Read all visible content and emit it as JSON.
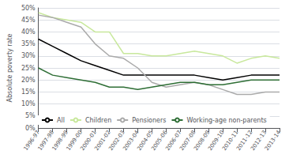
{
  "chart_data": {
    "type": "line",
    "categories": [
      "1996-97",
      "1997-98",
      "1998-99",
      "1999-00",
      "2000-01",
      "2001-02",
      "2002-03",
      "2003-04",
      "2004-05",
      "2005-06",
      "2006-07",
      "2007-08",
      "2008-09",
      "2009-10",
      "2010-11",
      "2011-12",
      "2012-13",
      "2013-14"
    ],
    "series": [
      {
        "name": "All",
        "color": "#000000",
        "values": [
          37,
          34,
          31,
          28,
          26,
          24,
          22,
          22,
          22,
          22,
          22,
          22,
          21,
          20,
          21,
          22,
          22,
          22
        ]
      },
      {
        "name": "Children",
        "color": "#c8e89c",
        "values": [
          48,
          46,
          45,
          44,
          40,
          40,
          31,
          31,
          30,
          30,
          31,
          32,
          31,
          30,
          27,
          29,
          30,
          29
        ]
      },
      {
        "name": "Pensioners",
        "color": "#aaaaaa",
        "values": [
          47,
          46,
          44,
          42,
          35,
          30,
          29,
          25,
          19,
          17,
          18,
          19,
          18,
          16,
          14,
          14,
          15,
          15
        ]
      },
      {
        "name": "Working-age non-parents",
        "color": "#2e6e35",
        "values": [
          25,
          22,
          21,
          20,
          19,
          17,
          17,
          16,
          17,
          18,
          19,
          19,
          18,
          18,
          19,
          20,
          20,
          20
        ]
      }
    ],
    "ylabel": "Absolute poverty rate",
    "ylim": [
      0,
      50
    ],
    "yticks": [
      {
        "value": 0,
        "label": "0%"
      },
      {
        "value": 5,
        "label": "5%"
      },
      {
        "value": 10,
        "label": "10%"
      },
      {
        "value": 15,
        "label": "15%"
      },
      {
        "value": 20,
        "label": "20%"
      },
      {
        "value": 25,
        "label": "25%"
      },
      {
        "value": 30,
        "label": "30%"
      },
      {
        "value": 35,
        "label": "35%"
      },
      {
        "value": 40,
        "label": "40%"
      },
      {
        "value": 45,
        "label": "45%"
      },
      {
        "value": 50,
        "label": "50%"
      }
    ],
    "grid": true,
    "legend": "lower left"
  }
}
